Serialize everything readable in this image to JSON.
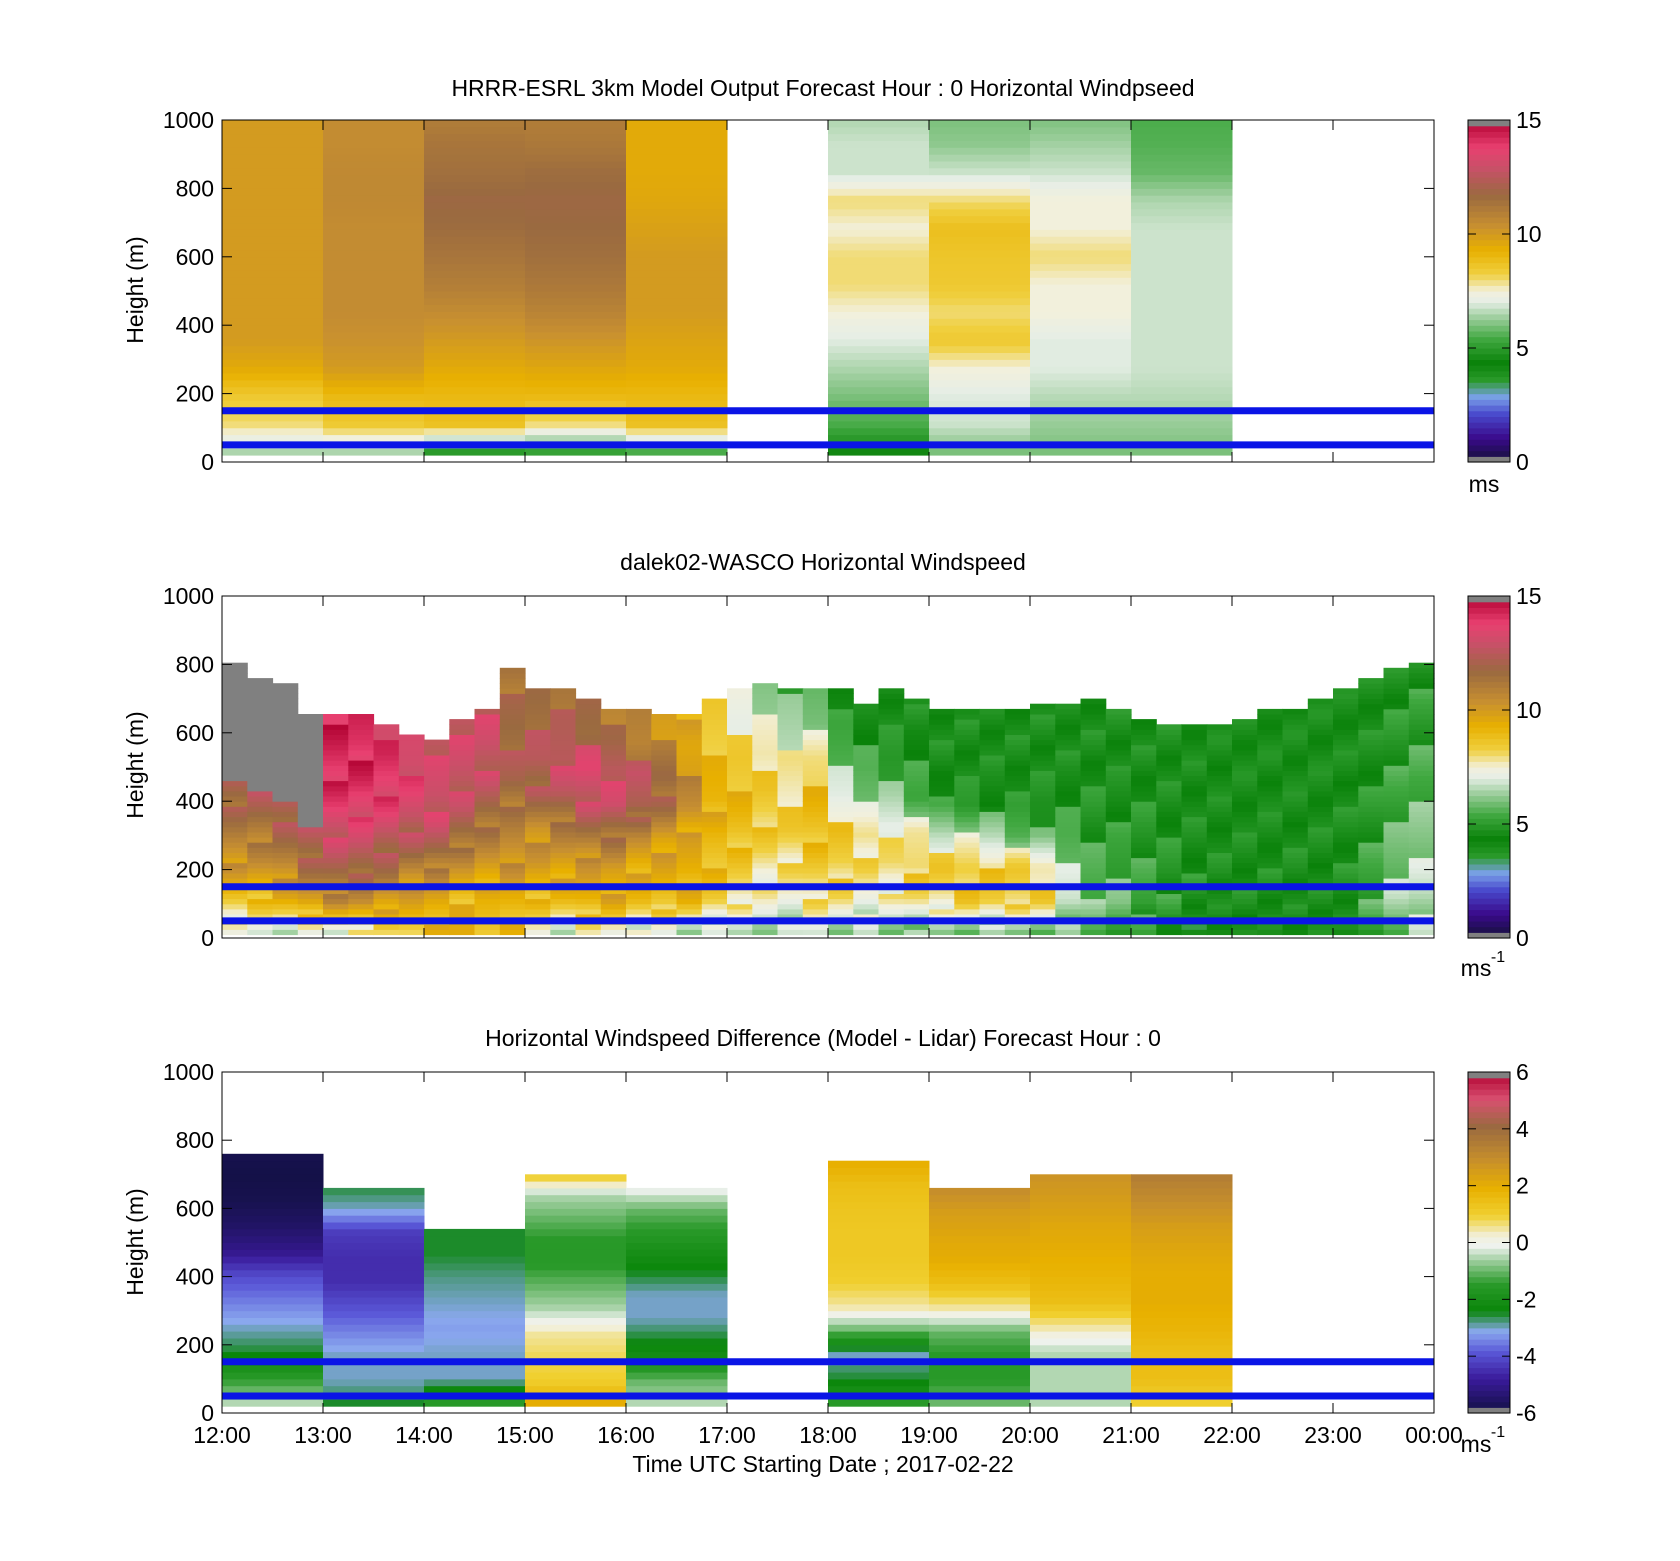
{
  "chart_data": [
    {
      "type": "heatmap",
      "title": "HRRR-ESRL 3km Model Output   Forecast Hour : 0 Horizontal Windpseed",
      "ylabel": "Height (m)",
      "xlabel": "",
      "ylim": [
        0,
        1000
      ],
      "yticks": [
        "0",
        "200",
        "400",
        "600",
        "800",
        "1000"
      ],
      "colorbar": {
        "min": 0,
        "max": 15,
        "ticks": [
          "0",
          "5",
          "10",
          "15"
        ],
        "unit": "ms"
      },
      "grid": false,
      "columns": [
        {
          "start": 0,
          "top": 1000,
          "values": [
            6.5,
            8.0,
            8.5,
            9.5,
            10.0,
            10.0,
            10.0,
            10.0,
            10.0,
            10.0,
            10.0,
            10.0,
            10.0
          ]
        },
        {
          "start": 1,
          "top": 1000,
          "values": [
            6.5,
            8.5,
            9.0,
            10.0,
            10.3,
            10.5,
            10.5,
            10.5,
            10.5,
            10.6,
            10.6,
            10.5,
            10.5
          ]
        },
        {
          "start": 2,
          "top": 1000,
          "values": [
            5.0,
            8.8,
            9.0,
            9.5,
            10.0,
            10.5,
            11.0,
            11.3,
            11.6,
            11.8,
            11.5,
            11.3,
            11.0
          ]
        },
        {
          "start": 3,
          "top": 1000,
          "values": [
            5.2,
            8.0,
            9.0,
            9.6,
            10.2,
            10.8,
            11.2,
            11.5,
            11.7,
            11.8,
            11.6,
            11.2,
            11.0
          ]
        },
        {
          "start": 4,
          "top": 1000,
          "values": [
            5.5,
            8.8,
            9.0,
            9.5,
            9.7,
            10.0,
            10.0,
            10.0,
            9.8,
            9.6,
            9.5,
            9.5,
            9.5
          ]
        },
        {
          "start": 6,
          "top": 1000,
          "values": [
            4.5,
            5.5,
            6.0,
            6.5,
            7.0,
            7.5,
            8.0,
            8.0,
            7.5,
            8.0,
            6.8,
            6.8,
            6.5
          ]
        },
        {
          "start": 7,
          "top": 1000,
          "values": [
            6.0,
            6.8,
            7.0,
            7.5,
            8.5,
            8.0,
            8.5,
            8.6,
            8.8,
            8.0,
            6.8,
            6.2,
            6.0
          ]
        },
        {
          "start": 8,
          "top": 1000,
          "values": [
            6.0,
            6.3,
            6.6,
            7.0,
            7.0,
            7.5,
            7.5,
            8.0,
            7.5,
            7.5,
            6.8,
            6.4,
            6.0
          ]
        },
        {
          "start": 9,
          "top": 1000,
          "values": [
            6.0,
            6.3,
            6.6,
            6.8,
            6.8,
            6.8,
            6.8,
            6.8,
            6.8,
            6.5,
            5.8,
            5.6,
            5.5
          ]
        }
      ]
    },
    {
      "type": "heatmap",
      "title": "dalek02-WASCO  Horizontal Windspeed",
      "ylabel": "Height (m)",
      "xlabel": "",
      "ylim": [
        0,
        1000
      ],
      "yticks": [
        "0",
        "200",
        "400",
        "600",
        "800",
        "1000"
      ],
      "colorbar": {
        "min": 0,
        "max": 15,
        "ticks": [
          "0",
          "5",
          "10",
          "15"
        ],
        "unit": "ms",
        "unit_exp": "-1"
      },
      "grid": false,
      "profile_interval_hours": 0.25,
      "profiles": [
        {
          "top": 800,
          "gap": [
            450,
            800
          ],
          "values": [
            7.0,
            9.0,
            10.5,
            11.5,
            12.5,
            13.5,
            13.5,
            14.0
          ]
        },
        {
          "top": 760,
          "gap": [
            430,
            760
          ],
          "values": [
            7.0,
            9.0,
            10.5,
            11.5,
            12.5,
            13.5,
            13.5,
            14.0
          ]
        },
        {
          "top": 740,
          "gap": [
            400,
            740
          ],
          "values": [
            7.0,
            9.5,
            11.0,
            12.0,
            13.0,
            13.5,
            13.5,
            14.0
          ]
        },
        {
          "top": 650,
          "gap": [
            320,
            650
          ],
          "values": [
            7.0,
            10.0,
            11.5,
            12.5,
            13.5,
            14.0,
            14.0,
            14.2
          ]
        },
        {
          "top": 650,
          "values": [
            7.0,
            10.5,
            12.0,
            13.0,
            13.8,
            14.2,
            14.3,
            14.3
          ]
        },
        {
          "top": 650,
          "values": [
            7.5,
            10.5,
            12.0,
            13.0,
            13.8,
            14.2,
            14.3,
            14.0
          ]
        },
        {
          "top": 620,
          "values": [
            8.0,
            10.0,
            11.5,
            12.5,
            13.5,
            14.0,
            14.0,
            13.5
          ]
        },
        {
          "top": 590,
          "values": [
            8.5,
            9.5,
            10.5,
            12.0,
            13.0,
            13.5,
            13.5,
            13.0
          ]
        },
        {
          "top": 580,
          "values": [
            9.0,
            9.5,
            10.5,
            12.0,
            13.0,
            13.2,
            13.0,
            13.0
          ]
        },
        {
          "top": 630,
          "values": [
            9.5,
            9.0,
            10.0,
            11.5,
            12.5,
            13.0,
            13.0,
            13.0
          ]
        },
        {
          "top": 660,
          "values": [
            9.0,
            9.0,
            10.0,
            11.0,
            12.0,
            12.8,
            13.0,
            13.0
          ]
        },
        {
          "top": 790,
          "values": [
            9.0,
            9.5,
            10.5,
            11.0,
            12.0,
            12.0,
            11.5,
            11.5
          ]
        },
        {
          "top": 720,
          "values": [
            7.5,
            9.0,
            10.0,
            10.5,
            12.0,
            12.5,
            12.0,
            11.5
          ]
        },
        {
          "top": 720,
          "values": [
            7.0,
            9.0,
            10.0,
            11.0,
            12.5,
            13.0,
            12.0,
            11.5
          ]
        },
        {
          "top": 690,
          "values": [
            7.5,
            9.5,
            10.0,
            11.5,
            13.0,
            13.5,
            12.0,
            11.5
          ]
        },
        {
          "top": 670,
          "values": [
            7.5,
            9.5,
            10.0,
            11.5,
            13.0,
            13.0,
            11.5,
            11.0
          ]
        },
        {
          "top": 660,
          "values": [
            7.0,
            9.0,
            9.5,
            10.5,
            12.5,
            12.5,
            11.0,
            10.5
          ]
        },
        {
          "top": 650,
          "values": [
            7.0,
            9.0,
            9.5,
            10.0,
            11.5,
            12.0,
            10.5,
            10.0
          ]
        },
        {
          "top": 650,
          "values": [
            6.5,
            9.0,
            9.5,
            9.5,
            10.5,
            10.5,
            9.5,
            9.5
          ]
        },
        {
          "top": 690,
          "values": [
            6.5,
            8.5,
            9.0,
            9.0,
            9.5,
            9.0,
            8.5,
            8.0
          ]
        },
        {
          "top": 720,
          "values": [
            6.5,
            8.0,
            8.5,
            9.0,
            9.0,
            8.5,
            7.5,
            7.0
          ]
        },
        {
          "top": 740,
          "values": [
            6.5,
            7.5,
            8.0,
            8.5,
            8.5,
            8.0,
            7.0,
            6.0
          ]
        },
        {
          "top": 720,
          "values": [
            6.5,
            7.5,
            8.0,
            8.5,
            8.0,
            7.5,
            6.5,
            5.5
          ]
        },
        {
          "top": 720,
          "values": [
            7.0,
            8.0,
            8.5,
            9.0,
            9.0,
            8.0,
            6.5,
            5.5
          ]
        },
        {
          "top": 720,
          "values": [
            6.5,
            8.0,
            8.5,
            8.5,
            7.0,
            6.0,
            5.0,
            4.5
          ]
        },
        {
          "top": 680,
          "values": [
            6.5,
            7.5,
            8.0,
            8.0,
            6.5,
            5.5,
            4.8,
            4.5
          ]
        },
        {
          "top": 730,
          "values": [
            6.0,
            7.5,
            8.0,
            7.5,
            6.0,
            5.0,
            4.5,
            4.5
          ]
        },
        {
          "top": 700,
          "values": [
            6.0,
            8.0,
            8.5,
            7.5,
            5.5,
            5.0,
            4.5,
            4.5
          ]
        },
        {
          "top": 660,
          "values": [
            6.0,
            8.0,
            8.5,
            7.0,
            5.0,
            4.5,
            4.5,
            4.5
          ]
        },
        {
          "top": 660,
          "values": [
            6.0,
            8.5,
            8.5,
            7.0,
            5.0,
            4.5,
            4.5,
            4.5
          ]
        },
        {
          "top": 670,
          "values": [
            6.0,
            8.5,
            8.5,
            6.5,
            4.8,
            4.5,
            4.5,
            4.5
          ]
        },
        {
          "top": 660,
          "values": [
            6.0,
            8.5,
            8.5,
            6.0,
            4.8,
            4.5,
            4.5,
            4.5
          ]
        },
        {
          "top": 680,
          "values": [
            6.0,
            8.5,
            8.0,
            5.5,
            4.8,
            4.5,
            4.5,
            4.5
          ]
        },
        {
          "top": 680,
          "values": [
            6.0,
            7.0,
            6.5,
            5.5,
            4.8,
            4.5,
            4.5,
            4.5
          ]
        },
        {
          "top": 690,
          "values": [
            5.5,
            6.0,
            5.5,
            5.0,
            4.8,
            4.5,
            4.5,
            4.5
          ]
        },
        {
          "top": 660,
          "values": [
            5.5,
            6.0,
            5.5,
            5.0,
            4.8,
            4.5,
            4.5,
            4.5
          ]
        },
        {
          "top": 640,
          "values": [
            5.0,
            5.5,
            5.2,
            5.0,
            4.8,
            4.5,
            4.5,
            4.5
          ]
        },
        {
          "top": 620,
          "values": [
            4.5,
            5.0,
            5.0,
            4.8,
            4.6,
            4.5,
            4.5,
            4.5
          ]
        },
        {
          "top": 620,
          "values": [
            4.0,
            4.5,
            4.8,
            4.6,
            4.5,
            4.4,
            4.4,
            4.4
          ]
        },
        {
          "top": 620,
          "values": [
            4.0,
            4.3,
            4.6,
            4.5,
            4.4,
            4.4,
            4.3,
            4.3
          ]
        },
        {
          "top": 640,
          "values": [
            4.2,
            4.5,
            4.6,
            4.5,
            4.4,
            4.3,
            4.3,
            4.3
          ]
        },
        {
          "top": 660,
          "values": [
            4.2,
            4.5,
            4.6,
            4.5,
            4.4,
            4.3,
            4.3,
            4.3
          ]
        },
        {
          "top": 670,
          "values": [
            4.2,
            4.5,
            4.6,
            4.5,
            4.4,
            4.3,
            4.3,
            4.3
          ]
        },
        {
          "top": 700,
          "values": [
            4.2,
            4.5,
            4.6,
            4.5,
            4.4,
            4.3,
            4.3,
            4.3
          ]
        },
        {
          "top": 730,
          "values": [
            4.2,
            4.6,
            4.7,
            4.6,
            4.5,
            4.4,
            4.4,
            4.3
          ]
        },
        {
          "top": 760,
          "values": [
            5.0,
            5.5,
            5.2,
            5.0,
            4.8,
            4.6,
            4.5,
            4.5
          ]
        },
        {
          "top": 790,
          "values": [
            6.0,
            6.5,
            6.0,
            5.5,
            5.2,
            5.0,
            4.8,
            4.8
          ]
        },
        {
          "top": 800,
          "values": [
            6.5,
            6.8,
            6.5,
            6.0,
            5.5,
            5.2,
            5.0,
            5.0
          ]
        }
      ],
      "reference_lines_m": [
        50,
        150
      ]
    },
    {
      "type": "heatmap",
      "title": "Horizontal Windspeed Difference (Model - Lidar) Forecast Hour : 0",
      "ylabel": "Height (m)",
      "xlabel": "Time UTC  Starting Date ; 2017-02-22",
      "ylim": [
        0,
        1000
      ],
      "yticks": [
        "0",
        "200",
        "400",
        "600",
        "800",
        "1000"
      ],
      "xticks": [
        "12:00",
        "13:00",
        "14:00",
        "15:00",
        "16:00",
        "17:00",
        "18:00",
        "19:00",
        "20:00",
        "21:00",
        "22:00",
        "23:00",
        "00:00"
      ],
      "colorbar": {
        "min": -6,
        "max": 6,
        "ticks": [
          "-6",
          "-4",
          "-2",
          "0",
          "2",
          "4",
          "6"
        ],
        "unit": "ms",
        "unit_exp": "-1"
      },
      "grid": false,
      "columns": [
        {
          "start": 0,
          "top": 760,
          "values": [
            -0.5,
            -1.5,
            -2.5,
            -3.0,
            -3.5,
            -4.0,
            -5.0,
            -5.5,
            -5.8,
            -5.9,
            -5.8
          ]
        },
        {
          "start": 1,
          "top": 660,
          "values": [
            -2.5,
            -3.0,
            -3.0,
            -3.5,
            -4.0,
            -4.5,
            -4.5,
            -4.3,
            -3.0,
            -2.5
          ]
        },
        {
          "start": 2,
          "top": 530,
          "values": [
            -1.5,
            -3.0,
            -3.0,
            -3.2,
            -3.0,
            -2.8,
            -2.5,
            -2.5
          ]
        },
        {
          "start": 3,
          "top": 700,
          "values": [
            2.0,
            1.0,
            0.8,
            0.5,
            -0.5,
            -1.0,
            -1.5,
            -1.5,
            -1.0,
            -0.5,
            1.5
          ]
        },
        {
          "start": 4,
          "top": 650,
          "values": [
            -0.5,
            -1.0,
            -2.0,
            -2.5,
            -3.0,
            -3.0,
            -2.5,
            -2.0,
            -1.5,
            -1.0,
            0.0
          ]
        },
        {
          "start": 6,
          "top": 730,
          "values": [
            -1.5,
            -2.5,
            -3.0,
            -1.0,
            0.5,
            1.0,
            1.2,
            1.2,
            1.3,
            1.5,
            2.0
          ]
        },
        {
          "start": 7,
          "top": 650,
          "values": [
            -1.0,
            -1.5,
            -1.5,
            -1.0,
            0.5,
            1.5,
            2.0,
            2.2,
            2.5,
            3.0
          ]
        },
        {
          "start": 8,
          "top": 690,
          "values": [
            -0.5,
            -0.5,
            -0.5,
            0.5,
            1.5,
            1.8,
            2.0,
            2.2,
            2.5,
            2.8
          ]
        },
        {
          "start": 9,
          "top": 690,
          "values": [
            1.0,
            1.5,
            1.5,
            1.8,
            2.0,
            2.0,
            2.2,
            2.5,
            3.0,
            3.5
          ]
        }
      ],
      "reference_lines_m": [
        50,
        150
      ]
    }
  ]
}
